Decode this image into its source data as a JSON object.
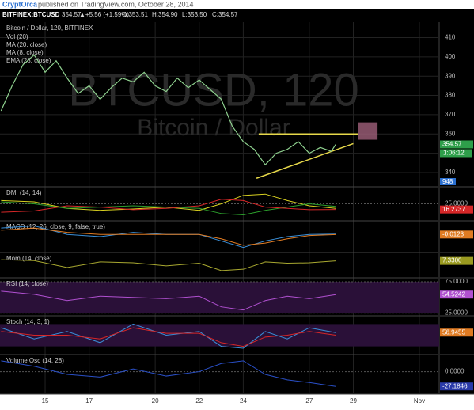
{
  "header": {
    "author": "CryptOrca",
    "published": "published on TradingView.com, October 28, 2014"
  },
  "chart_data": [
    {
      "type": "line",
      "symbol": "BITFINEX:BTCUSD",
      "quote": [
        "354.57",
        "▲+5.56 (+1.59%)",
        "O:353.51",
        "H:354.90",
        "L:353.50",
        "C:354.57"
      ],
      "title": "Bitcoin / Dollar, 120, BITFINEX",
      "indicators": [
        "Vol (20)",
        "MA (20, close)",
        "MA (8, close)",
        "EMA (28, close)"
      ],
      "watermark": [
        "BTCUSD, 120",
        "Bitcoin / Dollar"
      ],
      "x": [
        13,
        13.5,
        14,
        14.5,
        15,
        15.5,
        16,
        16.5,
        17,
        17.5,
        18,
        18.5,
        19,
        19.5,
        20,
        20.5,
        21,
        21.5,
        22,
        22.5,
        23,
        23.5,
        24,
        24.5,
        25,
        25.5,
        26,
        26.5,
        27,
        27.5,
        28,
        28.2
      ],
      "values": [
        372,
        385,
        396,
        401,
        392,
        398,
        389,
        381,
        385,
        378,
        384,
        389,
        387,
        392,
        385,
        382,
        389,
        384,
        388,
        383,
        378,
        364,
        356,
        352,
        344,
        350,
        352,
        356,
        350,
        353,
        351,
        354.57
      ],
      "color": "#8fd18f",
      "ylim": [
        333,
        418
      ],
      "yticks": [
        340,
        350,
        360,
        370,
        380,
        390,
        400,
        410
      ],
      "xlim": [
        12.95,
        32.9
      ],
      "xticks": [
        15,
        17,
        20,
        22,
        24,
        27,
        29,
        {
          "value": 32,
          "label": "Nov"
        }
      ],
      "grid": true,
      "last": {
        "value": 354.57,
        "label": "354.57",
        "color": "#2e9e4a"
      },
      "countdown": "1:06:12",
      "volume": 948,
      "annotations": [
        {
          "x": [
            24.7,
            29.2
          ],
          "y": [
            360,
            360
          ],
          "color": "#e6d84a"
        },
        {
          "x": [
            24.6,
            29
          ],
          "y": [
            337,
            355
          ],
          "color": "#e6d84a"
        }
      ],
      "box": {
        "x": [
          29.2,
          30.1
        ],
        "y": [
          357,
          366
        ],
        "color": "#a0607a"
      }
    },
    {
      "type": "line",
      "title": "DMI (14, 14)",
      "x": [
        13,
        14.5,
        16,
        17.5,
        19,
        20.5,
        22,
        23,
        24,
        25,
        26,
        27,
        28.2
      ],
      "ylim": [
        0,
        50
      ],
      "yticks": [
        {
          "value": 25,
          "label": "25.0000"
        }
      ],
      "series": [
        {
          "color": "#d8d020",
          "values": [
            30,
            28,
            18,
            15,
            17,
            20,
            15,
            25,
            38,
            40,
            30,
            22,
            18
          ]
        },
        {
          "color": "#2ca02c",
          "values": [
            28,
            25,
            18,
            20,
            22,
            20,
            18,
            10,
            8,
            15,
            20,
            25,
            21
          ]
        },
        {
          "color": "#d62728",
          "values": [
            12,
            14,
            22,
            20,
            16,
            18,
            22,
            32,
            30,
            20,
            18,
            16,
            16.2737
          ]
        }
      ],
      "last": {
        "value": 16.2737,
        "label": "16.2737",
        "color": "#d62728"
      }
    },
    {
      "type": "line",
      "title": "MACD (12, 26, close, 9, false, true)",
      "x": [
        13,
        14.5,
        16,
        17.5,
        19,
        20.5,
        22,
        23,
        24,
        25,
        26,
        27,
        28.2
      ],
      "ylim": [
        -8,
        6
      ],
      "yticks": [],
      "series": [
        {
          "color": "#3a8fd8",
          "values": [
            3,
            4,
            0,
            -1,
            1,
            0,
            0,
            -3,
            -6,
            -3,
            -1,
            0,
            0.2
          ]
        },
        {
          "color": "#e07b22",
          "values": [
            2,
            3,
            1,
            0,
            0,
            0,
            0,
            -2,
            -5,
            -4,
            -2,
            -0.5,
            -0.0123
          ]
        }
      ],
      "last": {
        "value": -0.0123,
        "label": "-0.0123",
        "color": "#e07b22"
      }
    },
    {
      "type": "line",
      "title": "Mom (14, close)",
      "x": [
        13,
        14.5,
        16,
        17.5,
        19,
        20.5,
        22,
        23,
        24,
        25,
        26,
        27,
        28.2
      ],
      "ylim": [
        -30,
        25
      ],
      "yticks": [],
      "series": [
        {
          "color": "#a8a830",
          "values": [
            10,
            8,
            -8,
            5,
            3,
            -4,
            2,
            -15,
            -12,
            5,
            2,
            3,
            7.33
          ]
        }
      ],
      "last": {
        "value": 7.33,
        "label": "7.3300",
        "color": "#9a9a20"
      }
    },
    {
      "type": "line",
      "title": "RSI (14, close)",
      "x": [
        13,
        14.5,
        16,
        17.5,
        19,
        20.5,
        22,
        23,
        24,
        25,
        26,
        27,
        28.2
      ],
      "ylim": [
        22,
        80
      ],
      "yticks": [
        {
          "value": 25,
          "label": "25.0000"
        },
        {
          "value": 75,
          "label": "75.0000"
        }
      ],
      "band": [
        25,
        75
      ],
      "series": [
        {
          "color": "#b050d0",
          "values": [
            60,
            55,
            45,
            52,
            50,
            48,
            52,
            35,
            30,
            45,
            52,
            48,
            54.5242
          ]
        }
      ],
      "last": {
        "value": 54.5242,
        "label": "54.5242",
        "color": "#b050d0"
      }
    },
    {
      "type": "line",
      "title": "Stoch (14, 3, 1)",
      "x": [
        13,
        14.5,
        16,
        17.5,
        19,
        20.5,
        22,
        23,
        24,
        25,
        26,
        27,
        28.2
      ],
      "ylim": [
        0,
        100
      ],
      "yticks": [],
      "band": [
        20,
        80
      ],
      "series": [
        {
          "color": "#3a8fd8",
          "values": [
            70,
            40,
            60,
            30,
            80,
            50,
            60,
            20,
            15,
            60,
            40,
            70,
            56.9455
          ]
        },
        {
          "color": "#d62728",
          "values": [
            60,
            50,
            50,
            40,
            70,
            55,
            55,
            30,
            20,
            45,
            50,
            60,
            50
          ]
        }
      ],
      "last": {
        "value": 56.9455,
        "label": "56.9455",
        "color": "#e07b22"
      }
    },
    {
      "type": "line",
      "title": "Volume Osc (14, 28)",
      "x": [
        13,
        14.5,
        16,
        17.5,
        19,
        20.5,
        22,
        23,
        24,
        25,
        26,
        27,
        28.2
      ],
      "ylim": [
        -40,
        30
      ],
      "yticks": [
        {
          "value": 0,
          "label": "0.0000"
        }
      ],
      "series": [
        {
          "color": "#2a50c8",
          "values": [
            20,
            10,
            -5,
            -10,
            5,
            -8,
            0,
            15,
            20,
            -5,
            -15,
            -20,
            -27.1846
          ]
        }
      ],
      "last": {
        "value": -27.1846,
        "label": "-27.1846",
        "color": "#2a3aa8"
      }
    }
  ]
}
